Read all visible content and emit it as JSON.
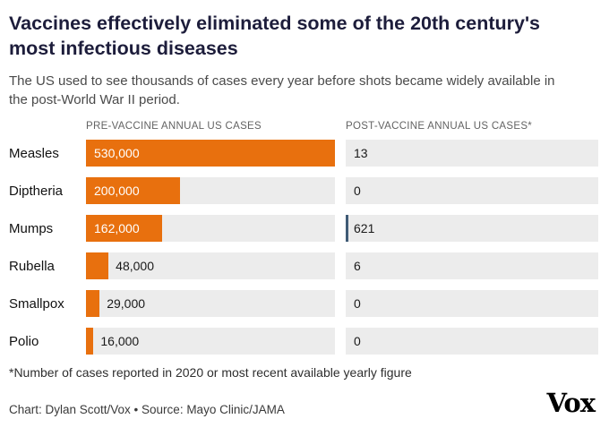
{
  "header": {
    "title": "Vaccines effectively eliminated some of the 20th century's most infectious diseases",
    "subtitle": "The US used to see thousands of cases every year before shots became widely available in the post-World War II period."
  },
  "columns": {
    "pre_label": "PRE-VACCINE ANNUAL US CASES",
    "post_label": "POST-VACCINE ANNUAL US CASES*"
  },
  "chart_data": {
    "type": "bar",
    "orientation": "horizontal",
    "title": "Vaccines effectively eliminated some of the 20th century's most infectious diseases",
    "categories": [
      "Measles",
      "Diptheria",
      "Mumps",
      "Rubella",
      "Smallpox",
      "Polio"
    ],
    "series": [
      {
        "name": "Pre-vaccine annual US cases",
        "values": [
          530000,
          200000,
          162000,
          48000,
          29000,
          16000
        ],
        "labels": [
          "530,000",
          "200,000",
          "162,000",
          "48,000",
          "29,000",
          "16,000"
        ]
      },
      {
        "name": "Post-vaccine annual US cases",
        "values": [
          13,
          0,
          621,
          6,
          0,
          0
        ],
        "labels": [
          "13",
          "0",
          "621",
          "6",
          "0",
          "0"
        ]
      }
    ],
    "xmax": 530000,
    "grid": false,
    "legend_position": "none"
  },
  "colors": {
    "bar_orange": "#e8700e",
    "track_gray": "#ececec",
    "post_tick_blue": "#3f5b76",
    "title_navy": "#1d1d3b"
  },
  "footer": {
    "footnote": "*Number of cases reported in 2020 or most recent available yearly figure",
    "credit": "Chart: Dylan Scott/Vox • Source: Mayo Clinic/JAMA",
    "logo": "Vox"
  }
}
